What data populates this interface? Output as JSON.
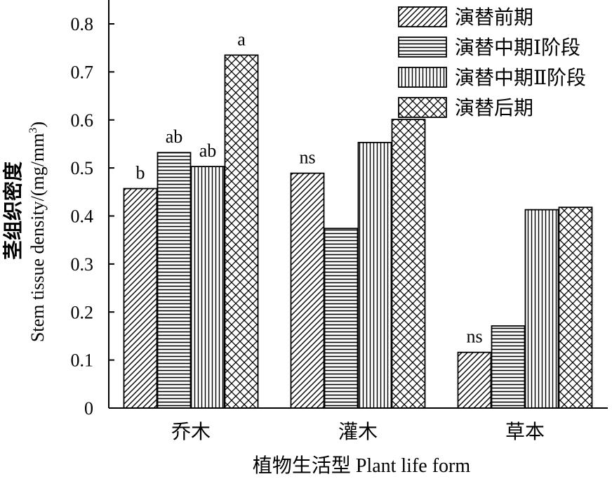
{
  "chart_data": {
    "type": "bar",
    "categories": [
      "乔木",
      "灌木",
      "草本"
    ],
    "series": [
      {
        "name": "演替前期",
        "values": [
          0.457,
          0.489,
          0.116
        ]
      },
      {
        "name": "演替中期Ⅰ阶段",
        "values": [
          0.532,
          0.374,
          0.171
        ]
      },
      {
        "name": "演替中期Ⅱ阶段",
        "values": [
          0.503,
          0.553,
          0.413
        ]
      },
      {
        "name": "演替后期",
        "values": [
          0.735,
          0.601,
          0.418
        ]
      }
    ],
    "significance": [
      [
        "b",
        "ab",
        "ab",
        "a"
      ],
      [
        "ns",
        "",
        "",
        ""
      ],
      [
        "ns",
        "",
        "",
        ""
      ]
    ],
    "xlabel": "植物生活型 Plant  life  form",
    "ylabel_zh": "茎组织密度",
    "ylabel_en": "Stem tissue density/(mg/mm",
    "ylabel_sup": "3",
    "ylabel_close": ")",
    "ylim": [
      0,
      0.85
    ],
    "yticks": [
      "0",
      "0.1",
      "0.2",
      "0.3",
      "0.4",
      "0.5",
      "0.6",
      "0.7",
      "0.8"
    ],
    "legend_position": "top-right",
    "patterns": [
      "diagonal",
      "horizontal",
      "vertical",
      "crosshatch"
    ]
  }
}
